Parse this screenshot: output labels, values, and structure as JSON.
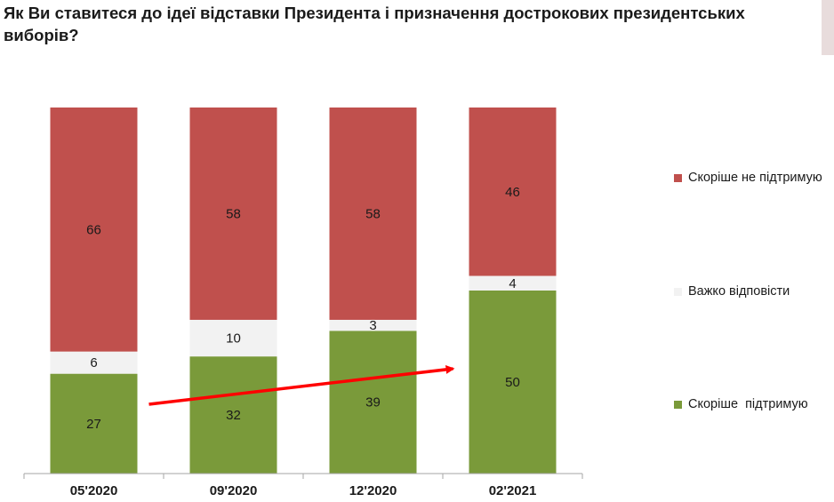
{
  "title": "Як Ви ставитеся до ідеї відставки Президента і призначення дострокових президентських виборів?",
  "chart_data": {
    "type": "bar",
    "stacked": true,
    "categories": [
      "05'2020",
      "09'2020",
      "12'2020",
      "02'2021"
    ],
    "series": [
      {
        "name": "Скоріше  підтримую",
        "color": "#7a9a3a",
        "values": [
          27,
          32,
          39,
          50
        ]
      },
      {
        "name": "Важко відповісти",
        "color": "#f2f2f2",
        "values": [
          6,
          10,
          3,
          4
        ]
      },
      {
        "name": "Скоріше не підтримую",
        "color": "#c0504d",
        "values": [
          66,
          58,
          58,
          46
        ]
      }
    ],
    "ylim": [
      0,
      100
    ],
    "grid": false,
    "legend_position": "right",
    "annotation": {
      "type": "trend-arrow",
      "color": "#ff0000",
      "from_category": "05'2020",
      "to_category": "02'2021"
    }
  }
}
